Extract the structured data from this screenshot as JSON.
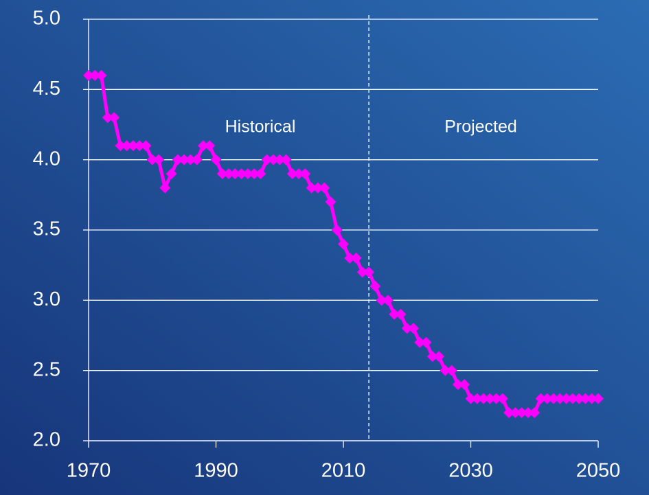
{
  "chart_data": {
    "type": "line",
    "x": [
      1970,
      1971,
      1972,
      1973,
      1974,
      1975,
      1976,
      1977,
      1978,
      1979,
      1980,
      1981,
      1982,
      1983,
      1984,
      1985,
      1986,
      1987,
      1988,
      1989,
      1990,
      1991,
      1992,
      1993,
      1994,
      1995,
      1996,
      1997,
      1998,
      1999,
      2000,
      2001,
      2002,
      2003,
      2004,
      2005,
      2006,
      2007,
      2008,
      2009,
      2010,
      2011,
      2012,
      2013,
      2014,
      2015,
      2016,
      2017,
      2018,
      2019,
      2020,
      2021,
      2022,
      2023,
      2024,
      2025,
      2026,
      2027,
      2028,
      2029,
      2030,
      2031,
      2032,
      2033,
      2034,
      2035,
      2036,
      2037,
      2038,
      2039,
      2040,
      2041,
      2042,
      2043,
      2044,
      2045,
      2046,
      2047,
      2048,
      2049,
      2050
    ],
    "series": [
      {
        "color": "#ff00ff",
        "values": [
          4.6,
          4.6,
          4.6,
          4.3,
          4.3,
          4.1,
          4.1,
          4.1,
          4.1,
          4.1,
          4.0,
          4.0,
          3.8,
          3.9,
          4.0,
          4.0,
          4.0,
          4.0,
          4.1,
          4.1,
          4.0,
          3.9,
          3.9,
          3.9,
          3.9,
          3.9,
          3.9,
          3.9,
          4.0,
          4.0,
          4.0,
          4.0,
          3.9,
          3.9,
          3.9,
          3.8,
          3.8,
          3.8,
          3.7,
          3.5,
          3.4,
          3.3,
          3.3,
          3.2,
          3.2,
          3.1,
          3.0,
          3.0,
          2.9,
          2.9,
          2.8,
          2.8,
          2.7,
          2.7,
          2.6,
          2.6,
          2.5,
          2.5,
          2.4,
          2.4,
          2.3,
          2.3,
          2.3,
          2.3,
          2.3,
          2.3,
          2.2,
          2.2,
          2.2,
          2.2,
          2.2,
          2.3,
          2.3,
          2.3,
          2.3,
          2.3,
          2.3,
          2.3,
          2.3,
          2.3,
          2.3
        ]
      }
    ],
    "xlim": [
      1970,
      2050
    ],
    "xticks": [
      1970,
      1990,
      2010,
      2030,
      2050
    ],
    "ylim": [
      2,
      5
    ],
    "yticks": [
      {
        "value": 2,
        "label": "2.0"
      },
      2.5,
      {
        "value": 3,
        "label": "3.0"
      },
      3.5,
      {
        "value": 4,
        "label": "4.0"
      },
      4.5,
      {
        "value": 5,
        "label": "5.0"
      }
    ],
    "grid": true,
    "divider_x": 2014,
    "annotations": [
      "Historical",
      "Projected"
    ]
  }
}
